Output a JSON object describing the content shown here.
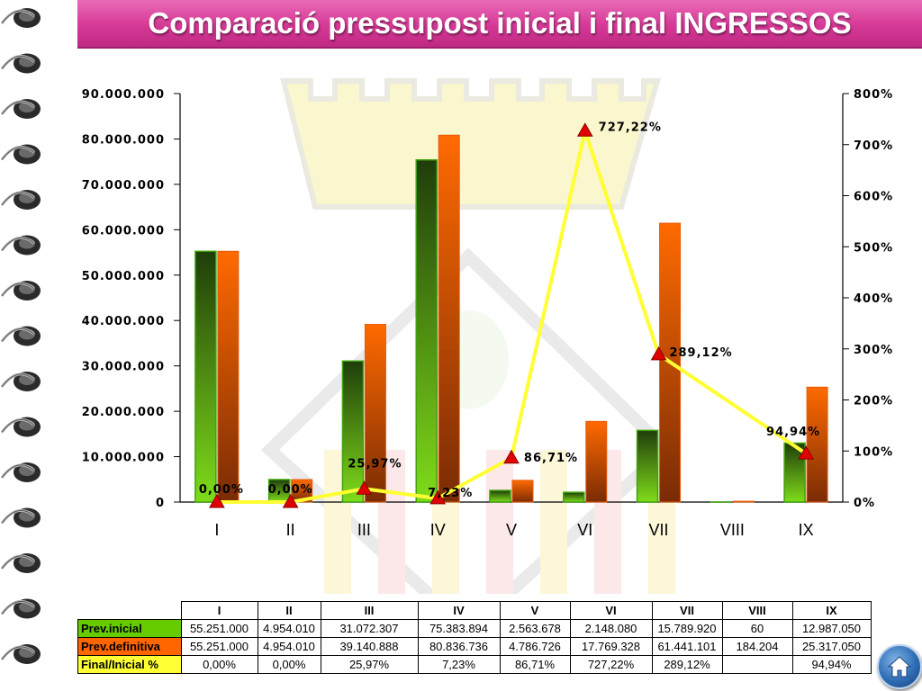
{
  "title": "Comparació pressupost inicial i final INGRESSOS",
  "chart_data": {
    "type": "bar",
    "categories": [
      "I",
      "II",
      "III",
      "IV",
      "V",
      "VI",
      "VII",
      "VIII",
      "IX"
    ],
    "series": [
      {
        "name": "Prev.inicial",
        "type": "bar",
        "axis": "left",
        "values": [
          55251000,
          4954010,
          31072307,
          75383894,
          2563678,
          2148080,
          15789920,
          60,
          12987050
        ]
      },
      {
        "name": "Prev.definitiva",
        "type": "bar",
        "axis": "left",
        "values": [
          55251000,
          4954010,
          39140888,
          80836736,
          4786726,
          17769328,
          61441101,
          184204,
          25317050
        ]
      },
      {
        "name": "Final/Inicial %",
        "type": "line",
        "axis": "right",
        "values": [
          0.0,
          0.0,
          25.97,
          7.23,
          86.71,
          727.22,
          289.12,
          null,
          94.94
        ],
        "labels": [
          "0,00%",
          "0,00%",
          "25,97%",
          "7,23%",
          "86,71%",
          "727,22%",
          "289,12%",
          "",
          "94,94%"
        ]
      }
    ],
    "left_axis": {
      "min": 0,
      "max": 90000000,
      "step": 10000000,
      "tick_labels": [
        "0",
        "10.000.000",
        "20.000.000",
        "30.000.000",
        "40.000.000",
        "50.000.000",
        "60.000.000",
        "70.000.000",
        "80.000.000",
        "90.000.000"
      ]
    },
    "right_axis": {
      "min": 0,
      "max": 800,
      "step": 100,
      "tick_labels": [
        "0%",
        "100%",
        "200%",
        "300%",
        "400%",
        "500%",
        "600%",
        "700%",
        "800%"
      ]
    },
    "grid": false,
    "legend": "table-below"
  },
  "table": {
    "headers": [
      "I",
      "II",
      "III",
      "IV",
      "V",
      "VI",
      "VII",
      "VIII",
      "IX"
    ],
    "rows": [
      {
        "label": "Prev.inicial",
        "label_color": "#66cc00",
        "cells": [
          "55.251.000",
          "4.954.010",
          "31.072.307",
          "75.383.894",
          "2.563.678",
          "2.148.080",
          "15.789.920",
          "60",
          "12.987.050"
        ]
      },
      {
        "label": "Prev.definitiva",
        "label_color": "#ff6600",
        "cells": [
          "55.251.000",
          "4.954.010",
          "39.140.888",
          "80.836.736",
          "4.786.726",
          "17.769.328",
          "61.441.101",
          "184.204",
          "25.317.050"
        ]
      },
      {
        "label": "Final/Inicial %",
        "label_color": "#ffff33",
        "cells": [
          "0,00%",
          "0,00%",
          "25,97%",
          "7,23%",
          "86,71%",
          "727,22%",
          "289,12%",
          "",
          "94,94%"
        ]
      }
    ]
  },
  "colors": {
    "title_bar": "#d63896",
    "bar_initial_top": "#1f3d0a",
    "bar_initial_bottom": "#7fdc1a",
    "bar_final_top": "#ff6a00",
    "bar_final_bottom": "#7a2b05",
    "line": "#ffff33",
    "marker": "#e00000"
  },
  "icons": {
    "home_button": "home-icon"
  }
}
